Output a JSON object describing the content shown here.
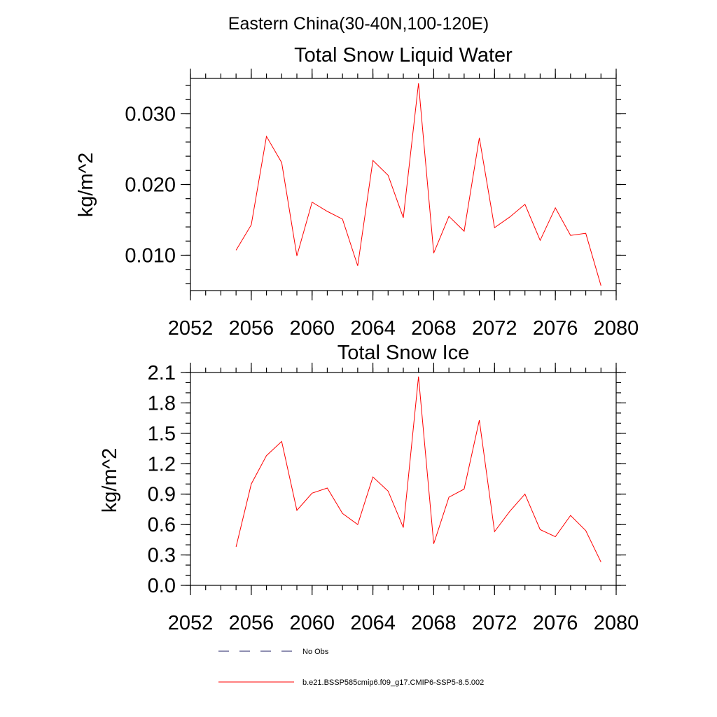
{
  "figure": {
    "suptitle": "Eastern China(30-40N,100-120E)",
    "legend": [
      {
        "label": "No Obs",
        "color": "#1f1f66",
        "dash": "dashed"
      },
      {
        "label": "b.e21.BSSP585cmip6.f09_g17.CMIP6-SSP5-8.5.002",
        "color": "#ff0000",
        "dash": "solid"
      }
    ]
  },
  "chart_data": [
    {
      "type": "line",
      "title": "Total Snow Liquid Water",
      "xlabel": "",
      "ylabel": "kg/m^2",
      "xlim": [
        2052,
        2080
      ],
      "ylim": [
        0.005,
        0.035
      ],
      "xticks": [
        2052,
        2056,
        2060,
        2064,
        2068,
        2072,
        2076,
        2080
      ],
      "xtick_labels": [
        "2052",
        "2056",
        "2060",
        "2064",
        "2068",
        "2072",
        "2076",
        "2080"
      ],
      "yticks": [
        0.01,
        0.02,
        0.03
      ],
      "ytick_labels": [
        "0.010",
        "0.020",
        "0.030"
      ],
      "y_minor_step": 0.002,
      "x_minor_step": 1,
      "grid": false,
      "series": [
        {
          "color": "#ff0000",
          "x": [
            2055,
            2056,
            2057,
            2058,
            2059,
            2060,
            2061,
            2062,
            2063,
            2064,
            2065,
            2066,
            2067,
            2068,
            2069,
            2070,
            2071,
            2072,
            2073,
            2074,
            2075,
            2076,
            2077,
            2078,
            2079
          ],
          "values": [
            0.0107,
            0.0143,
            0.0268,
            0.0231,
            0.0099,
            0.0175,
            0.0162,
            0.0151,
            0.0085,
            0.0234,
            0.0213,
            0.0153,
            0.0343,
            0.0103,
            0.0155,
            0.0134,
            0.0266,
            0.0139,
            0.0154,
            0.0172,
            0.0121,
            0.0167,
            0.0128,
            0.0131,
            0.0057
          ]
        }
      ]
    },
    {
      "type": "line",
      "title": "Total Snow Ice",
      "xlabel": "",
      "ylabel": "kg/m^2",
      "xlim": [
        2052,
        2080
      ],
      "ylim": [
        0.0,
        2.1
      ],
      "xticks": [
        2052,
        2056,
        2060,
        2064,
        2068,
        2072,
        2076,
        2080
      ],
      "xtick_labels": [
        "2052",
        "2056",
        "2060",
        "2064",
        "2068",
        "2072",
        "2076",
        "2080"
      ],
      "yticks": [
        0.0,
        0.3,
        0.6,
        0.9,
        1.2,
        1.5,
        1.8,
        2.1
      ],
      "ytick_labels": [
        "0.0",
        "0.3",
        "0.6",
        "0.9",
        "1.2",
        "1.5",
        "1.8",
        "2.1"
      ],
      "y_minor_step": 0.1,
      "x_minor_step": 1,
      "grid": false,
      "series": [
        {
          "color": "#ff0000",
          "x": [
            2055,
            2056,
            2057,
            2058,
            2059,
            2060,
            2061,
            2062,
            2063,
            2064,
            2065,
            2066,
            2067,
            2068,
            2069,
            2070,
            2071,
            2072,
            2073,
            2074,
            2075,
            2076,
            2077,
            2078,
            2079
          ],
          "values": [
            0.38,
            1.0,
            1.28,
            1.42,
            0.74,
            0.91,
            0.96,
            0.71,
            0.6,
            1.07,
            0.93,
            0.57,
            2.06,
            0.41,
            0.87,
            0.95,
            1.63,
            0.53,
            0.73,
            0.9,
            0.55,
            0.48,
            0.69,
            0.54,
            0.23
          ]
        }
      ]
    }
  ]
}
